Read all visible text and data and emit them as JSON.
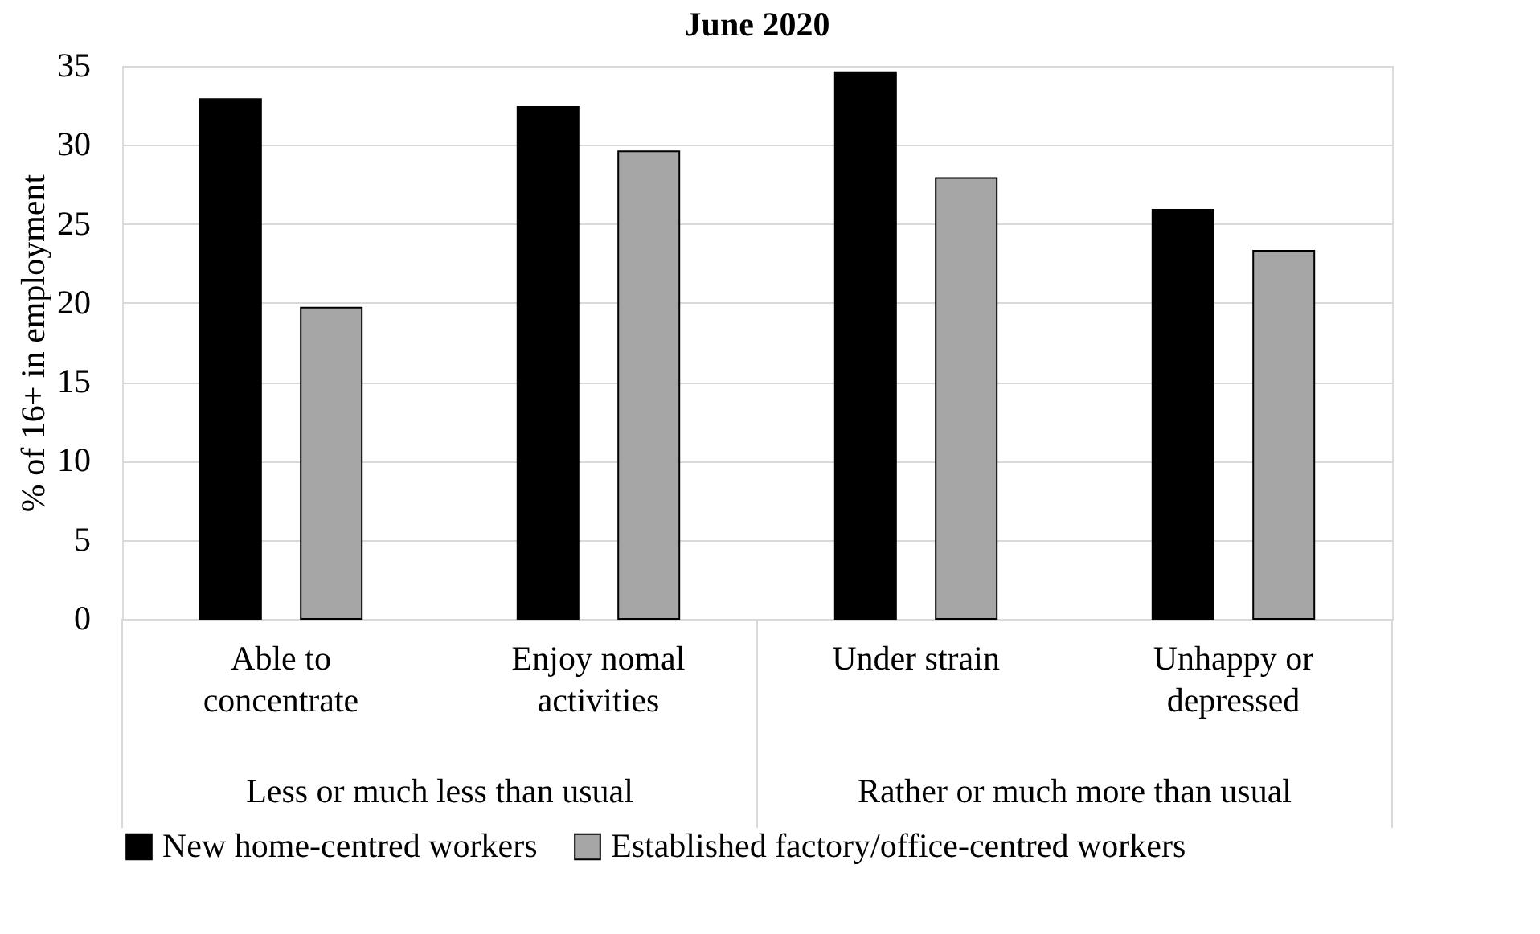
{
  "chart_data": {
    "type": "bar",
    "title": "June 2020",
    "ylabel": "% of 16+ in employment",
    "categories": [
      "Able to concentrate",
      "Enjoy nomal activities",
      "Under strain",
      "Unhappy or depressed"
    ],
    "series": [
      {
        "name": "New home-centred workers",
        "color": "#000000",
        "values": [
          32.9,
          32.4,
          34.6,
          25.9
        ]
      },
      {
        "name": "Established factory/office-centred workers",
        "color": "#a6a6a6",
        "values": [
          19.7,
          29.6,
          27.9,
          23.3
        ]
      }
    ],
    "annotations": [
      "Less or much less than usual",
      "Rather or much more than usual"
    ],
    "ylim": [
      0,
      35
    ],
    "yticks": [
      0,
      5,
      10,
      15,
      20,
      25,
      30,
      35
    ],
    "grid": "y",
    "legend": "bottom"
  }
}
